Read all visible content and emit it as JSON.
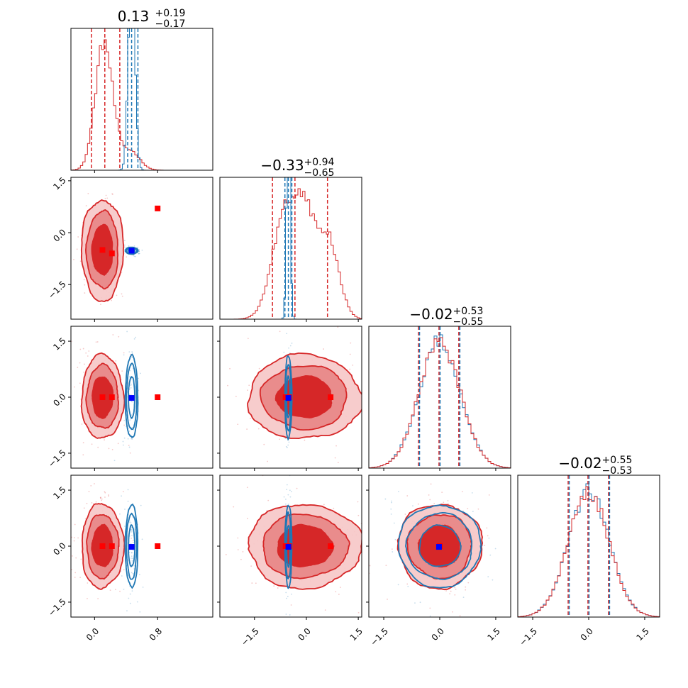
{
  "chart_data": {
    "type": "scatter",
    "layout": "corner-plot",
    "colors": {
      "red": "#d62728",
      "blue": "#1f77b4",
      "red_fill_light": "#f6c6c6",
      "red_fill_mid": "#e88888",
      "marker_red": "#ff0000",
      "marker_blue": "#0000ff"
    },
    "parameters": [
      {
        "name": "p0",
        "range": [
          -0.3,
          1.5
        ],
        "ticks": [
          0.0,
          0.8
        ],
        "tick_labels": [
          "0.0",
          "0.8"
        ],
        "median_title": "0.13",
        "err_plus": "+0.19",
        "err_minus": "−0.17",
        "red": {
          "mu": 0.1,
          "sigma": 0.13,
          "quantiles": [
            -0.04,
            0.13,
            0.32
          ]
        },
        "blue": {
          "mu": 0.47,
          "sigma": 0.04,
          "quantiles": [
            0.42,
            0.47,
            0.55
          ]
        },
        "truths_red": [
          0.1,
          0.22,
          0.8
        ],
        "truth_blue": 0.47
      },
      {
        "name": "p1",
        "range": [
          -2.5,
          1.6
        ],
        "ticks": [
          -1.5,
          0.0,
          1.5
        ],
        "tick_labels": [
          "−1.5",
          "0.0",
          "1.5"
        ],
        "median_title": "−0.33",
        "err_plus": "+0.94",
        "err_minus": "−0.65",
        "red": {
          "mu": -0.5,
          "sigma": 0.55,
          "quantiles": [
            -0.98,
            -0.33,
            0.61
          ]
        },
        "blue": {
          "mu": -0.52,
          "sigma": 0.05,
          "quantiles": [
            -0.62,
            -0.52,
            -0.42
          ]
        },
        "truths_red": [
          -0.5,
          -0.6,
          0.7
        ],
        "truth_blue": -0.52
      },
      {
        "name": "p2",
        "range": [
          -1.9,
          1.9
        ],
        "ticks": [
          -1.5,
          0.0,
          1.5
        ],
        "tick_labels": [
          "−1.5",
          "0.0",
          "1.5"
        ],
        "median_title": "−0.02",
        "err_plus": "+0.53",
        "err_minus": "−0.55",
        "red": {
          "mu": 0.0,
          "sigma": 0.55,
          "quantiles": [
            -0.57,
            -0.02,
            0.51
          ]
        },
        "blue": {
          "mu": 0.0,
          "sigma": 0.55,
          "quantiles": [
            -0.57,
            -0.02,
            0.51
          ]
        },
        "truths_red": [
          0.0
        ],
        "truth_blue": -0.02
      },
      {
        "name": "p3",
        "range": [
          -1.9,
          1.9
        ],
        "ticks": [
          -1.5,
          0.0,
          1.5
        ],
        "tick_labels": [
          "−1.5",
          "0.0",
          "1.5"
        ],
        "median_title": "−0.02",
        "err_plus": "+0.55",
        "err_minus": "−0.53",
        "red": {
          "mu": 0.0,
          "sigma": 0.55,
          "quantiles": [
            -0.55,
            -0.02,
            0.53
          ]
        },
        "blue": {
          "mu": 0.0,
          "sigma": 0.55,
          "quantiles": [
            -0.55,
            -0.02,
            0.53
          ]
        },
        "truths_red": [
          0.0
        ],
        "truth_blue": -0.02
      }
    ]
  }
}
